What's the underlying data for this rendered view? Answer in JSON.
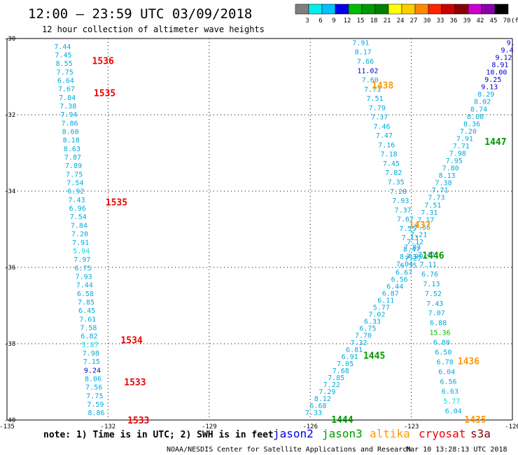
{
  "title": "12:00 – 23:59 UTC 03/09/2018",
  "subtitle": "12 hour collection of altimeter wave heights",
  "colorbar": {
    "labels": [
      "3",
      "6",
      "9",
      "12",
      "15",
      "18",
      "21",
      "24",
      "27",
      "30",
      "33",
      "36",
      "39",
      "42",
      "45",
      "70"
    ],
    "unit": "(ft)",
    "colors": [
      "#7f7f7f",
      "#00eeee",
      "#00c0ff",
      "#0000ee",
      "#00bb00",
      "#009900",
      "#008000",
      "#ffff00",
      "#ffcc00",
      "#ff8800",
      "#ff2200",
      "#cc0000",
      "#880000",
      "#cc00cc",
      "#8800aa",
      "#000000"
    ]
  },
  "footer": {
    "note": "note: 1) Time is in UTC; 2) SWH is in feet",
    "legend": [
      {
        "label": "jason2",
        "color": "#0000ee"
      },
      {
        "label": "jason3",
        "color": "#009900"
      },
      {
        "label": "altika",
        "color": "#ff9900"
      },
      {
        "label": "cryosat",
        "color": "#ee0000"
      },
      {
        "label": "s3a",
        "color": "#880000"
      }
    ],
    "credit": "NOAA/NESDIS Center for Satellite Applications and Research",
    "timestamp": "Mar 10 13:28:13 UTC 2018"
  },
  "chart_data": {
    "type": "scatter",
    "xlim": [
      -135,
      -120
    ],
    "ylim": [
      -40,
      -30
    ],
    "x_ticks": [
      -135,
      -132,
      -129,
      -126,
      -123,
      -120
    ],
    "y_ticks": [
      -30,
      -32,
      -34,
      -36,
      -38,
      -40
    ],
    "x_tick_labels": [
      "-135",
      "-132",
      "-129",
      "-126",
      "-123",
      "-120"
    ],
    "y_tick_labels": [
      "-30",
      "-32",
      "-34",
      "-36",
      "-38",
      "-40"
    ],
    "grid": "dotted",
    "tracks": [
      {
        "name": "",
        "x0": -133.35,
        "y0": -30.2,
        "x1": -132.35,
        "y1": -39.8,
        "values": [
          "7.44",
          "7.45",
          "8.55",
          "7.75",
          "6.64",
          "7.67",
          "7.84",
          "7.38",
          "7.94",
          "7.86",
          "8.60",
          "8.18",
          "8.63",
          "7.87",
          "7.89",
          "7.75",
          "7.54",
          "6.92",
          "7.43",
          "6.96",
          "7.54",
          "7.84",
          "7.20",
          "7.91",
          "5.94",
          "7.97",
          "6.75",
          "7.93",
          "7.44",
          "6.58",
          "7.85",
          "6.45",
          "7.61",
          "7.58",
          "6.82",
          "5.87",
          "7.98",
          "7.15",
          "9.24",
          "8.06",
          "7.56",
          "7.75",
          "7.59",
          "8.86"
        ],
        "colors": [
          "#00aadd",
          "#00aadd",
          "#00aadd",
          "#00aadd",
          "#00aadd",
          "#00aadd",
          "#00aadd",
          "#00aadd",
          "#00aadd",
          "#00aadd",
          "#00aadd",
          "#00aadd",
          "#00aadd",
          "#00aadd",
          "#00aadd",
          "#00aadd",
          "#00aadd",
          "#00aadd",
          "#00aadd",
          "#00aadd",
          "#00aadd",
          "#00aadd",
          "#00aadd",
          "#00aadd",
          "#00dddd",
          "#00aadd",
          "#00aadd",
          "#00aadd",
          "#00aadd",
          "#00aadd",
          "#00aadd",
          "#00aadd",
          "#00aadd",
          "#00aadd",
          "#00aadd",
          "#00dddd",
          "#00aadd",
          "#00aadd",
          "#0000cc",
          "#00aadd",
          "#00aadd",
          "#00aadd",
          "#00aadd",
          "#00aadd"
        ]
      },
      {
        "name": "",
        "x0": -124.5,
        "y0": -30.1,
        "x1": -122.9,
        "y1": -35.7,
        "values": [
          "7.91",
          "8.17",
          "7.66",
          "11.02",
          "7.60",
          "7.73",
          "7.51",
          "7.79",
          "7.37",
          "7.46",
          "7.47",
          "7.16",
          "7.18",
          "7.45",
          "7.82",
          "7.35",
          "7.28",
          "7.93",
          "7.37",
          "7.67",
          "7.55",
          "7.13",
          "7.83",
          "7.99"
        ],
        "colors": [
          "#00aadd",
          "#00aadd",
          "#00aadd",
          "#0000cc",
          "#00aadd",
          "#00aadd",
          "#00aadd",
          "#00aadd",
          "#00aadd",
          "#00aadd",
          "#00aadd",
          "#00aadd",
          "#00aadd",
          "#00aadd",
          "#00aadd",
          "#00aadd",
          "#00aadd",
          "#00aadd",
          "#00aadd",
          "#00aadd",
          "#00aadd",
          "#00aadd",
          "#00aadd",
          "#00aadd"
        ]
      },
      {
        "name": "",
        "x0": -122.55,
        "y0": -35.65,
        "x1": -121.75,
        "y1": -39.75,
        "values": [
          "7.42",
          "7.11",
          "6.76",
          "7.13",
          "7.52",
          "7.43",
          "7.07",
          "6.88",
          "15.36",
          "6.80",
          "6.50",
          "6.78",
          "6.04",
          "6.56",
          "6.63",
          "5.77",
          "6.04"
        ],
        "colors": [
          "#00aadd",
          "#00aadd",
          "#00aadd",
          "#00aadd",
          "#00aadd",
          "#00aadd",
          "#00aadd",
          "#00aadd",
          "#00bb00",
          "#00aadd",
          "#00aadd",
          "#00aadd",
          "#00aadd",
          "#00aadd",
          "#00aadd",
          "#00dddd",
          "#00aadd"
        ]
      },
      {
        "name": "",
        "x0": -122.95,
        "y0": -35.75,
        "x1": -125.9,
        "y1": -39.8,
        "values": [
          "7.27",
          "6.35",
          "6.67",
          "6.56",
          "6.44",
          "6.87",
          "6.11",
          "5.77",
          "7.02",
          "6.33",
          "6.75",
          "7.70",
          "7.32",
          "6.81",
          "6.91",
          "7.05",
          "7.68",
          "7.85",
          "7.22",
          "7.29",
          "8.12",
          "6.68",
          "7.33"
        ],
        "colors": [
          "#00aadd",
          "#00aadd",
          "#00aadd",
          "#00aadd",
          "#00aadd",
          "#00aadd",
          "#00aadd",
          "#00aadd",
          "#00aadd",
          "#00aadd",
          "#00aadd",
          "#00aadd",
          "#00aadd",
          "#00aadd",
          "#00aadd",
          "#00aadd",
          "#00aadd",
          "#00aadd",
          "#00aadd",
          "#00aadd",
          "#00aadd",
          "#00aadd",
          "#00aadd"
        ]
      },
      {
        "name": "",
        "x0": -120.05,
        "y0": -30.1,
        "x1": -123.2,
        "y1": -35.9,
        "values": [
          "9.",
          "9.4",
          "9.12",
          "8.91",
          "10.00",
          "9.25",
          "9.13",
          "8.29",
          "8.02",
          "8.74",
          "8.08",
          "8.36",
          "7.20",
          "7.91",
          "7.71",
          "7.98",
          "7.95",
          "7.80",
          "8.13",
          "7.38",
          "7.71",
          "7.73",
          "7.51",
          "7.31",
          "7.17",
          "7.55",
          "7.21",
          "7.12",
          "8.47",
          "8.43",
          "7.04"
        ],
        "colors": [
          "#0000cc",
          "#0000cc",
          "#0000cc",
          "#0000cc",
          "#0000cc",
          "#0000cc",
          "#0000cc",
          "#00aadd",
          "#00aadd",
          "#00aadd",
          "#00aadd",
          "#00aadd",
          "#00aadd",
          "#00aadd",
          "#00aadd",
          "#00aadd",
          "#00aadd",
          "#00aadd",
          "#00aadd",
          "#00aadd",
          "#00aadd",
          "#00aadd",
          "#00aadd",
          "#00aadd",
          "#00aadd",
          "#00aadd",
          "#00aadd",
          "#00aadd",
          "#00aadd",
          "#00aadd",
          "#00aadd"
        ]
      }
    ],
    "time_labels": [
      {
        "text": "1536",
        "x": -132.15,
        "y": -30.58,
        "color": "#ee0000"
      },
      {
        "text": "1535",
        "x": -132.1,
        "y": -31.42,
        "color": "#ee0000"
      },
      {
        "text": "1535",
        "x": -131.75,
        "y": -34.28,
        "color": "#ee0000"
      },
      {
        "text": "1534",
        "x": -131.3,
        "y": -37.9,
        "color": "#ee0000"
      },
      {
        "text": "1533",
        "x": -131.2,
        "y": -39.0,
        "color": "#ee0000"
      },
      {
        "text": "1533",
        "x": -131.1,
        "y": -40.0,
        "color": "#ee0000"
      },
      {
        "text": "1438",
        "x": -123.85,
        "y": -31.22,
        "color": "#ff9900"
      },
      {
        "text": "1437",
        "x": -122.75,
        "y": -34.88,
        "color": "#ff9900"
      },
      {
        "text": "1436",
        "x": -121.3,
        "y": -38.45,
        "color": "#ff9900"
      },
      {
        "text": "1435",
        "x": -121.1,
        "y": -39.98,
        "color": "#ff9900"
      },
      {
        "text": "1447",
        "x": -120.5,
        "y": -32.7,
        "color": "#009900"
      },
      {
        "text": "1446",
        "x": -122.35,
        "y": -35.68,
        "color": "#009900"
      },
      {
        "text": "1445",
        "x": -124.1,
        "y": -38.3,
        "color": "#009900"
      },
      {
        "text": "1444",
        "x": -125.05,
        "y": -39.98,
        "color": "#009900"
      }
    ]
  }
}
